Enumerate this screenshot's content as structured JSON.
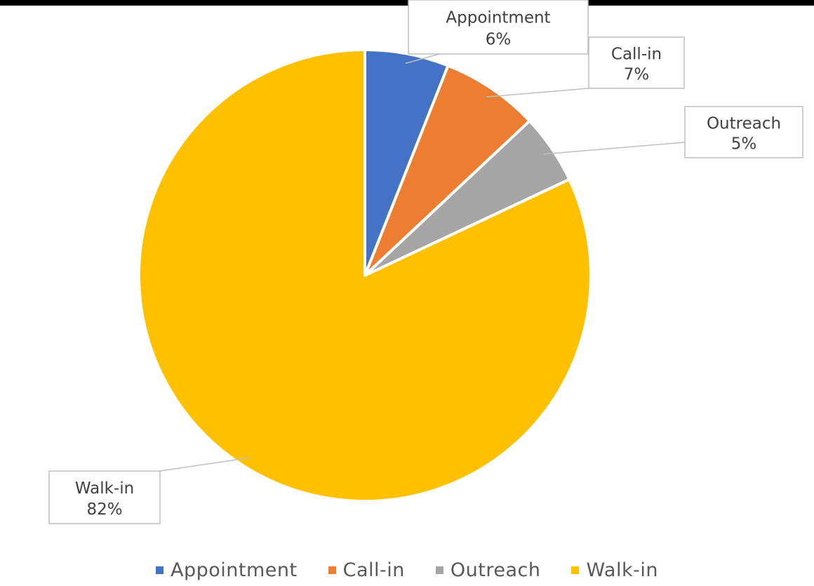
{
  "chart_data": {
    "type": "pie",
    "title": "",
    "slices": [
      {
        "label": "Appointment",
        "value": 6,
        "value_text": "6%",
        "color": "#4472C4"
      },
      {
        "label": "Call-in",
        "value": 7,
        "value_text": "7%",
        "color": "#ED7D31"
      },
      {
        "label": "Outreach",
        "value": 5,
        "value_text": "5%",
        "color": "#A5A5A5"
      },
      {
        "label": "Walk-in",
        "value": 82,
        "value_text": "82%",
        "color": "#FFC000"
      }
    ],
    "legend_position": "bottom",
    "data_labels": "callouts with category and percentage"
  }
}
